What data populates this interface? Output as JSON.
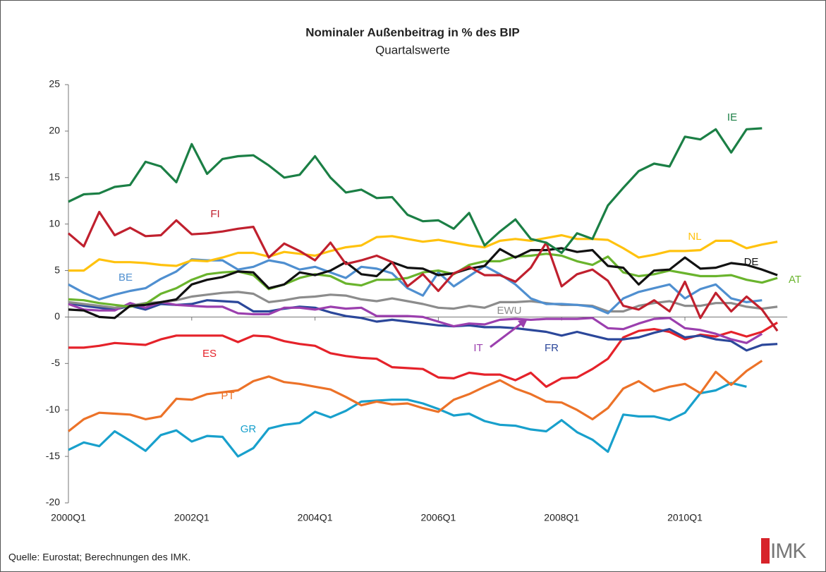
{
  "chart_data": {
    "type": "line",
    "title": "Nominaler Außenbeitrag in % des BIP",
    "subtitle": "Quartalswerte",
    "source": "Quelle: Eurostat; Berechnungen des IMK.",
    "logo": "IMK",
    "categories": [
      "2000Q1",
      null,
      null,
      null,
      null,
      null,
      null,
      null,
      "2002Q1",
      null,
      null,
      null,
      null,
      null,
      null,
      null,
      "2004Q1",
      null,
      null,
      null,
      null,
      null,
      null,
      null,
      "2006Q1",
      null,
      null,
      null,
      null,
      null,
      null,
      null,
      "2008Q1",
      null,
      null,
      null,
      null,
      null,
      null,
      null,
      "2010Q1",
      null,
      null,
      null,
      null,
      null,
      null
    ],
    "ylim": [
      -20,
      25
    ],
    "yticks": [
      -20,
      -15,
      -10,
      -5,
      0,
      5,
      10,
      15,
      20,
      25
    ],
    "grid": false,
    "series": [
      {
        "name": "IE",
        "color": "#1b7f45",
        "values": [
          12.4,
          13.2,
          13.3,
          14.0,
          14.2,
          16.7,
          16.2,
          14.5,
          18.6,
          15.4,
          17.0,
          17.3,
          17.4,
          16.3,
          15.0,
          15.3,
          17.3,
          15.0,
          13.4,
          13.7,
          12.8,
          12.9,
          11.0,
          10.3,
          10.4,
          9.5,
          11.2,
          7.7,
          9.2,
          10.5,
          8.4,
          8.0,
          6.9,
          9.0,
          8.4,
          12.0,
          13.9,
          15.7,
          16.5,
          16.2,
          19.4,
          19.1,
          20.2,
          17.7,
          20.2,
          20.3,
          null
        ]
      },
      {
        "name": "FI",
        "color": "#c0202e",
        "values": [
          9.0,
          7.6,
          11.3,
          8.8,
          9.6,
          8.7,
          8.8,
          10.4,
          8.9,
          9.0,
          9.2,
          9.5,
          9.7,
          6.4,
          7.9,
          7.1,
          6.1,
          8.0,
          5.7,
          6.1,
          6.6,
          5.9,
          3.3,
          4.6,
          2.8,
          4.7,
          5.4,
          4.5,
          4.5,
          3.8,
          5.3,
          8.0,
          3.3,
          4.6,
          5.1,
          3.9,
          1.2,
          0.8,
          1.8,
          0.6,
          3.8,
          -0.1,
          2.6,
          0.6,
          2.2,
          0.8,
          -1.5
        ]
      },
      {
        "name": "NL",
        "color": "#ffc20e",
        "values": [
          5.0,
          5.0,
          6.2,
          5.9,
          5.9,
          5.8,
          5.6,
          5.5,
          6.1,
          6.0,
          6.4,
          6.9,
          6.9,
          6.5,
          7.0,
          6.8,
          6.6,
          7.1,
          7.5,
          7.7,
          8.6,
          8.7,
          8.4,
          8.1,
          8.3,
          8.0,
          7.7,
          7.5,
          8.2,
          8.4,
          8.2,
          8.5,
          8.8,
          8.4,
          8.4,
          8.3,
          7.4,
          6.4,
          6.7,
          7.1,
          7.1,
          7.2,
          8.2,
          8.2,
          7.4,
          7.8,
          8.1
        ]
      },
      {
        "name": "DE",
        "color": "#111111",
        "values": [
          0.8,
          0.7,
          0.0,
          -0.1,
          1.2,
          1.3,
          1.6,
          1.9,
          3.5,
          4.0,
          4.3,
          4.9,
          4.8,
          3.1,
          3.5,
          4.8,
          4.5,
          5.0,
          5.9,
          4.6,
          4.4,
          5.9,
          5.3,
          5.2,
          4.5,
          4.7,
          5.2,
          5.5,
          7.3,
          6.4,
          7.2,
          7.2,
          7.4,
          7.0,
          7.2,
          5.5,
          5.3,
          3.5,
          5.0,
          5.1,
          6.4,
          5.2,
          5.3,
          5.8,
          5.6,
          5.1,
          4.5
        ]
      },
      {
        "name": "AT",
        "color": "#6ab42d",
        "values": [
          1.9,
          1.8,
          1.5,
          1.3,
          1.1,
          1.4,
          2.5,
          3.1,
          4.0,
          4.6,
          4.8,
          4.9,
          4.5,
          3.0,
          3.5,
          4.2,
          4.6,
          4.4,
          3.6,
          3.4,
          4.0,
          4.0,
          4.2,
          4.8,
          5.0,
          4.6,
          5.6,
          6.0,
          6.0,
          6.5,
          6.6,
          6.8,
          6.6,
          6.0,
          5.6,
          6.5,
          4.8,
          4.4,
          4.6,
          5.0,
          4.7,
          4.4,
          4.4,
          4.5,
          4.0,
          3.7,
          4.2
        ]
      },
      {
        "name": "BE",
        "color": "#4f8fd0",
        "values": [
          3.5,
          2.6,
          1.9,
          2.4,
          2.8,
          3.1,
          4.1,
          4.9,
          6.2,
          6.1,
          6.1,
          5.1,
          5.4,
          6.1,
          5.8,
          5.1,
          5.4,
          4.8,
          4.2,
          5.4,
          5.2,
          4.7,
          3.1,
          2.3,
          4.8,
          3.3,
          4.4,
          5.5,
          4.6,
          3.5,
          2.0,
          1.4,
          1.4,
          1.3,
          1.1,
          0.4,
          2.0,
          2.7,
          3.1,
          3.5,
          2.0,
          3.0,
          3.5,
          2.0,
          1.6,
          1.8,
          null
        ]
      },
      {
        "name": "EWU",
        "color": "#8c8c8c",
        "values": [
          1.6,
          1.4,
          1.2,
          1.0,
          1.2,
          1.5,
          1.6,
          1.8,
          2.2,
          2.4,
          2.6,
          2.7,
          2.5,
          1.6,
          1.8,
          2.1,
          2.2,
          2.4,
          2.3,
          1.9,
          1.7,
          2.0,
          1.7,
          1.4,
          1.0,
          0.9,
          1.2,
          1.0,
          1.6,
          1.6,
          1.7,
          1.5,
          1.3,
          1.3,
          1.2,
          0.6,
          0.6,
          1.2,
          1.5,
          1.7,
          1.2,
          1.2,
          1.5,
          1.5,
          1.1,
          0.9,
          1.1
        ]
      },
      {
        "name": "IT",
        "color": "#9b3fae",
        "values": [
          1.4,
          0.8,
          0.7,
          0.7,
          1.5,
          1.0,
          1.6,
          1.3,
          1.2,
          1.1,
          1.1,
          0.4,
          0.3,
          0.3,
          1.0,
          1.0,
          0.8,
          1.1,
          0.9,
          1.0,
          0.1,
          0.1,
          0.1,
          0.0,
          -0.5,
          -1.0,
          -0.7,
          -0.8,
          -0.3,
          -0.2,
          -0.3,
          -0.2,
          -0.2,
          -0.2,
          -0.1,
          -1.2,
          -1.3,
          -0.7,
          -0.2,
          -0.1,
          -1.2,
          -1.4,
          -1.8,
          -2.4,
          -2.8,
          -1.8,
          null
        ]
      },
      {
        "name": "FR",
        "color": "#2b479a",
        "values": [
          1.5,
          1.2,
          1.0,
          0.8,
          1.2,
          0.8,
          1.4,
          1.3,
          1.4,
          1.8,
          1.7,
          1.6,
          0.6,
          0.6,
          0.9,
          1.1,
          1.0,
          0.5,
          0.1,
          -0.1,
          -0.5,
          -0.3,
          -0.5,
          -0.7,
          -0.9,
          -1.0,
          -0.9,
          -1.1,
          -1.1,
          -1.2,
          -1.4,
          -1.6,
          -2.0,
          -1.6,
          -2.0,
          -2.4,
          -2.4,
          -2.2,
          -1.7,
          -1.3,
          -2.2,
          -2.0,
          -2.4,
          -2.6,
          -3.6,
          -3.0,
          -2.9
        ]
      },
      {
        "name": "ES",
        "color": "#e5222a",
        "values": [
          -3.3,
          -3.3,
          -3.1,
          -2.8,
          -2.9,
          -3.0,
          -2.4,
          -2.0,
          -2.0,
          -2.0,
          -2.0,
          -2.7,
          -2.0,
          -2.1,
          -2.6,
          -2.9,
          -3.1,
          -3.9,
          -4.2,
          -4.4,
          -4.5,
          -5.4,
          -5.5,
          -5.6,
          -6.5,
          -6.6,
          -6.0,
          -6.2,
          -6.2,
          -6.8,
          -6.0,
          -7.5,
          -6.6,
          -6.5,
          -5.6,
          -4.5,
          -2.2,
          -1.5,
          -1.3,
          -1.6,
          -2.4,
          -1.9,
          -2.1,
          -1.6,
          -2.1,
          -1.6,
          -0.6
        ]
      },
      {
        "name": "PT",
        "color": "#ec7228",
        "values": [
          -12.3,
          -11.0,
          -10.3,
          -10.4,
          -10.5,
          -11.0,
          -10.7,
          -8.8,
          -8.9,
          -8.3,
          -8.1,
          -7.9,
          -6.9,
          -6.4,
          -7.0,
          -7.2,
          -7.5,
          -7.8,
          -8.6,
          -9.5,
          -9.1,
          -9.4,
          -9.3,
          -9.8,
          -10.2,
          -8.9,
          -8.3,
          -7.5,
          -6.8,
          -7.7,
          -8.3,
          -9.1,
          -9.2,
          -10.0,
          -11.0,
          -9.8,
          -7.7,
          -6.9,
          -8.0,
          -7.5,
          -7.2,
          -8.2,
          -5.9,
          -7.3,
          -5.8,
          -4.7,
          null
        ]
      },
      {
        "name": "GR",
        "color": "#18a0cc",
        "values": [
          -14.3,
          -13.5,
          -13.9,
          -12.3,
          -13.3,
          -14.4,
          -12.7,
          -12.2,
          -13.4,
          -12.8,
          -12.9,
          -15.0,
          -14.1,
          -12.0,
          -11.6,
          -11.4,
          -10.2,
          -10.8,
          -10.1,
          -9.1,
          -9.0,
          -8.9,
          -8.9,
          -9.3,
          -9.9,
          -10.6,
          -10.4,
          -11.2,
          -11.6,
          -11.7,
          -12.1,
          -12.3,
          -11.1,
          -12.4,
          -13.2,
          -14.5,
          -10.5,
          -10.7,
          -10.7,
          -11.1,
          -10.3,
          -8.2,
          -7.9,
          -7.1,
          -7.5,
          null,
          null
        ]
      }
    ]
  }
}
